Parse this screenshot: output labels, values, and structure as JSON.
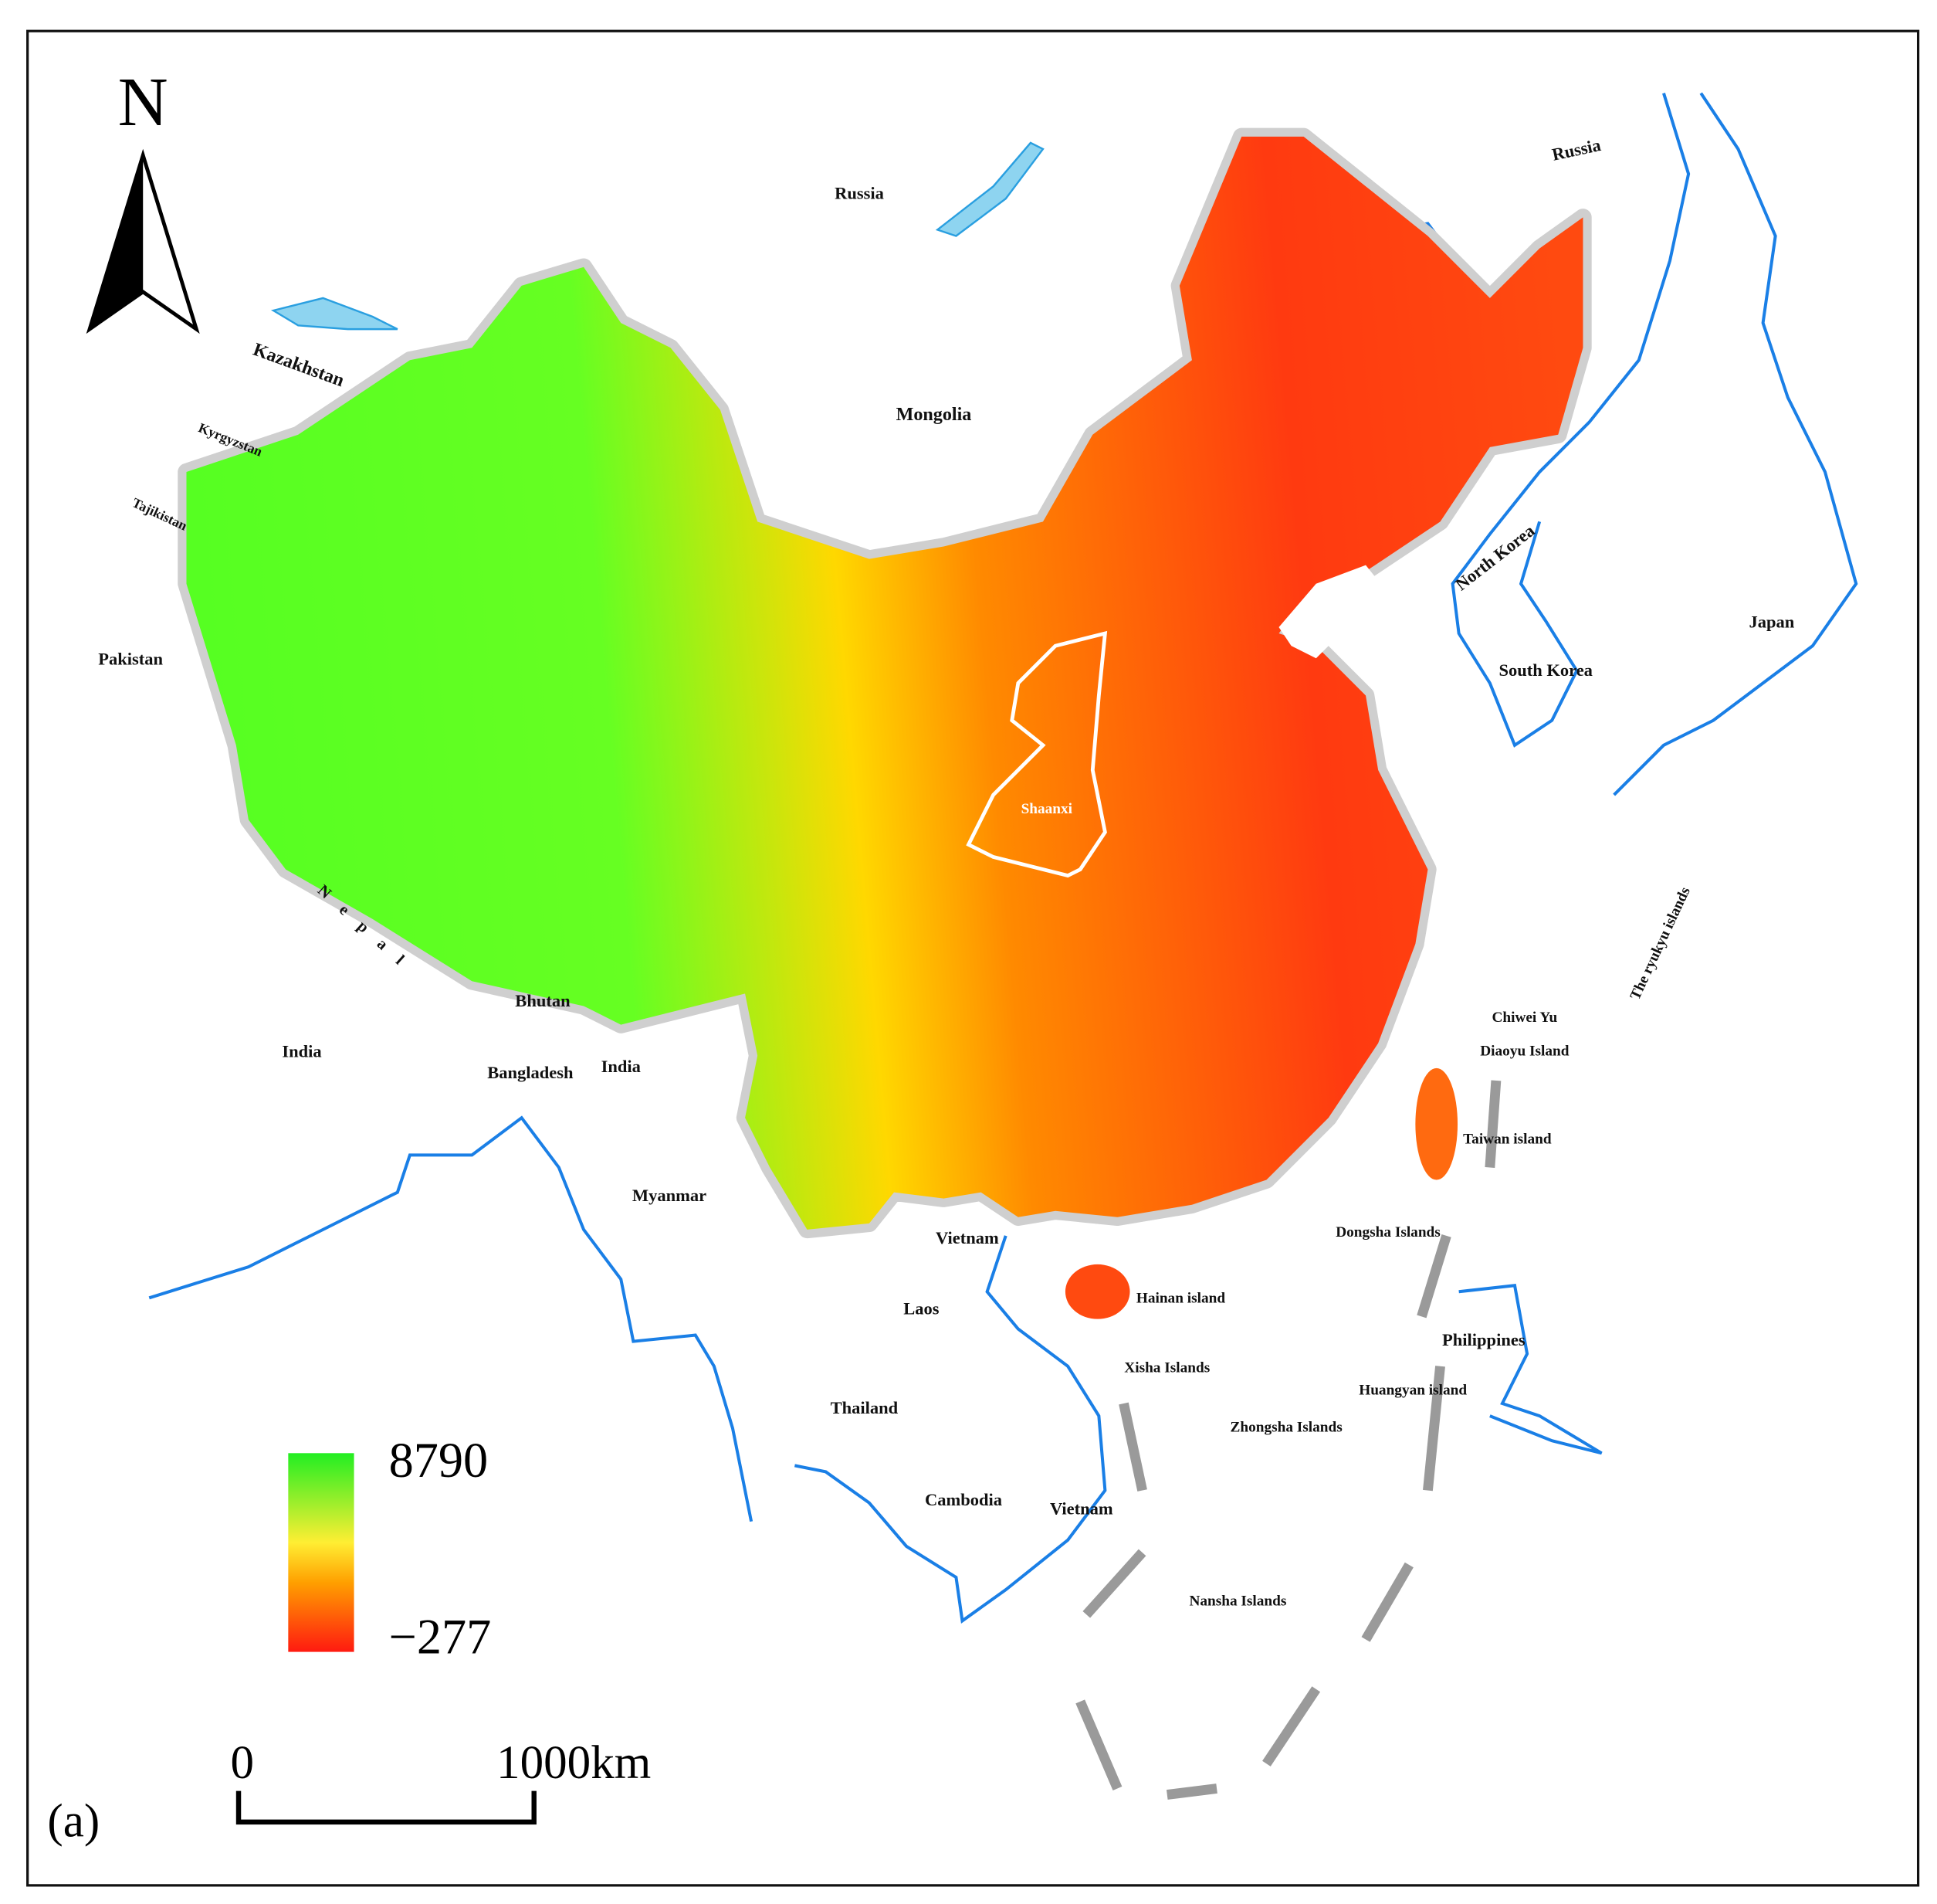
{
  "north": "N",
  "panel": "(a)",
  "legend": {
    "max": 8790,
    "min": {
      "value": -277,
      "label": "−277"
    }
  },
  "scale_bar": {
    "start": "0",
    "end": "1000km"
  },
  "labels": [
    "Russia",
    "Russia",
    "Kazakhstan",
    "Kyrgyzstan",
    "Tajikistan",
    "Mongolia",
    "Pakistan",
    "Nepal",
    "India",
    "Bhutan",
    "Bangladesh",
    "India",
    "Myanmar",
    "Vietnam",
    "Laos",
    "Thailand",
    "Cambodia",
    "Vietnam",
    "North Korea",
    "South Korea",
    "Japan",
    "Shaanxi",
    "The ryukyu islands",
    "Chiwei Yu",
    "Diaoyu Island",
    "Taiwan island",
    "Dongsha Islands",
    "Hainan island",
    "Philippines",
    "Xisha Islands",
    "Huangyan island",
    "Zhongsha Islands",
    "Nansha Islands"
  ]
}
